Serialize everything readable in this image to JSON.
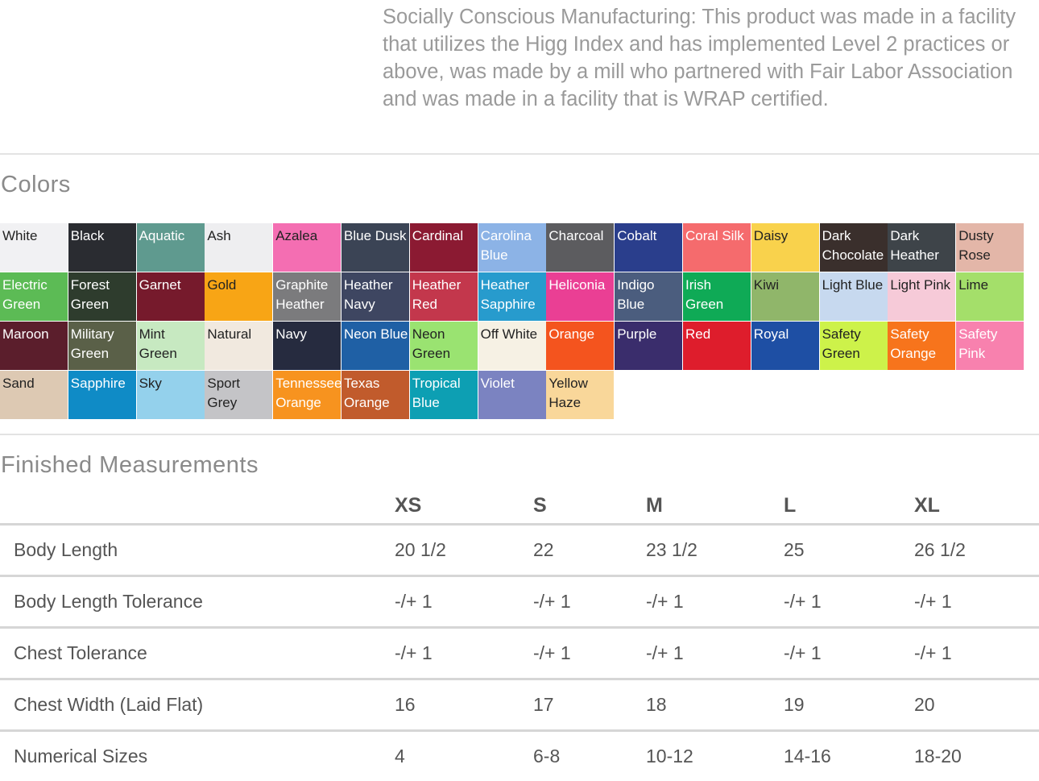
{
  "intro_text": "Socially Conscious Manufacturing: This product was made in a facility that utilizes the Higg Index and has implemented Level 2 practices or above, was made by a mill who partnered with Fair Labor Association and was made in a facility that is WRAP certified.",
  "colors_title": "Colors",
  "colors": [
    {
      "name": "White",
      "bg": "#f1f1f3",
      "fg": "#222222"
    },
    {
      "name": "Black",
      "bg": "#2a2c31",
      "fg": "#ffffff"
    },
    {
      "name": "Aquatic",
      "bg": "#5f9a8f",
      "fg": "#ffffff"
    },
    {
      "name": "Ash",
      "bg": "#eeeef0",
      "fg": "#222222"
    },
    {
      "name": "Azalea",
      "bg": "#f46eb2",
      "fg": "#222222"
    },
    {
      "name": "Blue Dusk",
      "bg": "#3b4455",
      "fg": "#ffffff"
    },
    {
      "name": "Cardinal",
      "bg": "#8b1a32",
      "fg": "#ffffff"
    },
    {
      "name": "Carolina Blue",
      "bg": "#8cb3e6",
      "fg": "#ffffff"
    },
    {
      "name": "Charcoal",
      "bg": "#5c5c5f",
      "fg": "#ffffff"
    },
    {
      "name": "Cobalt",
      "bg": "#2a3e8c",
      "fg": "#ffffff"
    },
    {
      "name": "Coral Silk",
      "bg": "#f56b6d",
      "fg": "#ffffff"
    },
    {
      "name": "Daisy",
      "bg": "#f9d24c",
      "fg": "#222222"
    },
    {
      "name": "Dark Chocolate",
      "bg": "#3a2f2c",
      "fg": "#ffffff"
    },
    {
      "name": "Dark Heather",
      "bg": "#3e4449",
      "fg": "#ffffff"
    },
    {
      "name": "Dusty Rose",
      "bg": "#e3b6a8",
      "fg": "#222222"
    },
    {
      "name": "Electric Green",
      "bg": "#5cbb55",
      "fg": "#ffffff"
    },
    {
      "name": "Forest Green",
      "bg": "#2e3c2d",
      "fg": "#ffffff"
    },
    {
      "name": "Garnet",
      "bg": "#761a2c",
      "fg": "#ffffff"
    },
    {
      "name": "Gold",
      "bg": "#f8a515",
      "fg": "#222222"
    },
    {
      "name": "Graphite Heather",
      "bg": "#7b7b7d",
      "fg": "#ffffff"
    },
    {
      "name": "Heather Navy",
      "bg": "#3e4661",
      "fg": "#ffffff"
    },
    {
      "name": "Heather Red",
      "bg": "#c3374c",
      "fg": "#ffffff"
    },
    {
      "name": "Heather Sapphire",
      "bg": "#279bcd",
      "fg": "#ffffff"
    },
    {
      "name": "Heliconia",
      "bg": "#ea3f94",
      "fg": "#ffffff"
    },
    {
      "name": "Indigo Blue",
      "bg": "#4b5d7e",
      "fg": "#ffffff"
    },
    {
      "name": "Irish Green",
      "bg": "#0faa56",
      "fg": "#ffffff"
    },
    {
      "name": "Kiwi",
      "bg": "#90b66a",
      "fg": "#222222"
    },
    {
      "name": "Light Blue",
      "bg": "#c7d9ef",
      "fg": "#222222"
    },
    {
      "name": "Light Pink",
      "bg": "#f6cad8",
      "fg": "#222222"
    },
    {
      "name": "Lime",
      "bg": "#a4df6a",
      "fg": "#222222"
    },
    {
      "name": "Maroon",
      "bg": "#5b1e2c",
      "fg": "#ffffff"
    },
    {
      "name": "Military Green",
      "bg": "#5a6048",
      "fg": "#ffffff"
    },
    {
      "name": "Mint Green",
      "bg": "#c7e9c1",
      "fg": "#222222"
    },
    {
      "name": "Natural",
      "bg": "#f1e9df",
      "fg": "#222222"
    },
    {
      "name": "Navy",
      "bg": "#262b3f",
      "fg": "#ffffff"
    },
    {
      "name": "Neon Blue",
      "bg": "#1f60a5",
      "fg": "#ffffff"
    },
    {
      "name": "Neon Green",
      "bg": "#9ae371",
      "fg": "#222222"
    },
    {
      "name": "Off White",
      "bg": "#f6f1e4",
      "fg": "#222222"
    },
    {
      "name": "Orange",
      "bg": "#f4541e",
      "fg": "#ffffff"
    },
    {
      "name": "Purple",
      "bg": "#3a2d6c",
      "fg": "#ffffff"
    },
    {
      "name": "Red",
      "bg": "#de1d2c",
      "fg": "#ffffff"
    },
    {
      "name": "Royal",
      "bg": "#1e4fa4",
      "fg": "#ffffff"
    },
    {
      "name": "Safety Green",
      "bg": "#cdf24a",
      "fg": "#222222"
    },
    {
      "name": "Safety Orange",
      "bg": "#f7741c",
      "fg": "#ffffff"
    },
    {
      "name": "Safety Pink",
      "bg": "#f881ae",
      "fg": "#ffffff"
    },
    {
      "name": "Sand",
      "bg": "#ddc9b3",
      "fg": "#222222"
    },
    {
      "name": "Sapphire",
      "bg": "#0f8bc6",
      "fg": "#ffffff"
    },
    {
      "name": "Sky",
      "bg": "#94d1ec",
      "fg": "#222222"
    },
    {
      "name": "Sport Grey",
      "bg": "#c4c4c7",
      "fg": "#222222"
    },
    {
      "name": "Tennessee Orange",
      "bg": "#f7931f",
      "fg": "#ffffff"
    },
    {
      "name": "Texas Orange",
      "bg": "#c15b2c",
      "fg": "#ffffff"
    },
    {
      "name": "Tropical Blue",
      "bg": "#0d9fb3",
      "fg": "#ffffff"
    },
    {
      "name": "Violet",
      "bg": "#7b83c1",
      "fg": "#ffffff"
    },
    {
      "name": "Yellow Haze",
      "bg": "#f9d79a",
      "fg": "#222222"
    }
  ],
  "measurements_title": "Finished Measurements",
  "measurements": {
    "sizes": [
      "XS",
      "S",
      "M",
      "L",
      "XL"
    ],
    "rows": [
      {
        "label": "Body Length",
        "values": [
          "20 1/2",
          "22",
          "23 1/2",
          "25",
          "26 1/2"
        ]
      },
      {
        "label": "Body Length Tolerance",
        "values": [
          "-/+ 1",
          "-/+ 1",
          "-/+ 1",
          "-/+ 1",
          "-/+ 1"
        ]
      },
      {
        "label": "Chest Tolerance",
        "values": [
          "-/+ 1",
          "-/+ 1",
          "-/+ 1",
          "-/+ 1",
          "-/+ 1"
        ]
      },
      {
        "label": "Chest Width (Laid Flat)",
        "values": [
          "16",
          "17",
          "18",
          "19",
          "20"
        ]
      },
      {
        "label": "Numerical Sizes",
        "values": [
          "4",
          "6-8",
          "10-12",
          "14-16",
          "18-20"
        ]
      }
    ]
  }
}
